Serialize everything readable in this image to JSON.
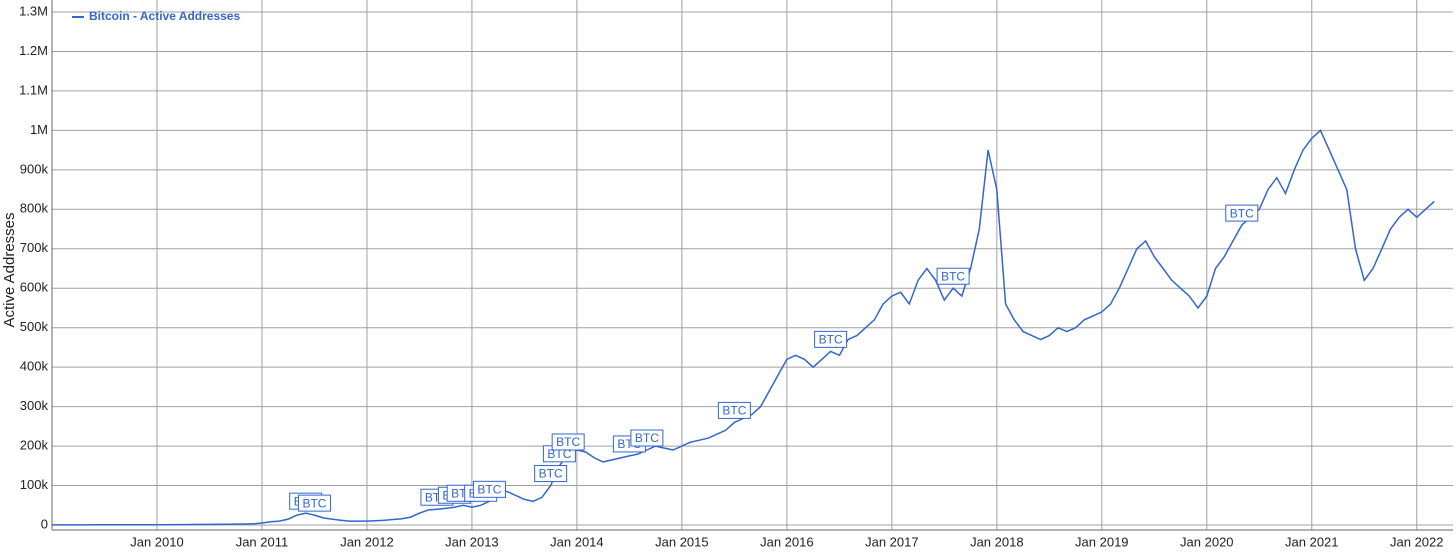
{
  "chart_data": {
    "type": "line",
    "y_label": "Active Addresses",
    "x": [
      "2009-01",
      "2009-02",
      "2009-03",
      "2009-04",
      "2009-05",
      "2009-06",
      "2009-07",
      "2009-08",
      "2009-09",
      "2009-10",
      "2009-11",
      "2009-12",
      "2010-01",
      "2010-02",
      "2010-03",
      "2010-04",
      "2010-05",
      "2010-06",
      "2010-07",
      "2010-08",
      "2010-09",
      "2010-10",
      "2010-11",
      "2010-12",
      "2011-01",
      "2011-02",
      "2011-03",
      "2011-04",
      "2011-05",
      "2011-06",
      "2011-07",
      "2011-08",
      "2011-09",
      "2011-10",
      "2011-11",
      "2011-12",
      "2012-01",
      "2012-02",
      "2012-03",
      "2012-04",
      "2012-05",
      "2012-06",
      "2012-07",
      "2012-08",
      "2012-09",
      "2012-10",
      "2012-11",
      "2012-12",
      "2013-01",
      "2013-02",
      "2013-03",
      "2013-04",
      "2013-05",
      "2013-06",
      "2013-07",
      "2013-08",
      "2013-09",
      "2013-10",
      "2013-11",
      "2013-12",
      "2014-01",
      "2014-02",
      "2014-03",
      "2014-04",
      "2014-05",
      "2014-06",
      "2014-07",
      "2014-08",
      "2014-09",
      "2014-10",
      "2014-11",
      "2014-12",
      "2015-01",
      "2015-02",
      "2015-03",
      "2015-04",
      "2015-05",
      "2015-06",
      "2015-07",
      "2015-08",
      "2015-09",
      "2015-10",
      "2015-11",
      "2015-12",
      "2016-01",
      "2016-02",
      "2016-03",
      "2016-04",
      "2016-05",
      "2016-06",
      "2016-07",
      "2016-08",
      "2016-09",
      "2016-10",
      "2016-11",
      "2016-12",
      "2017-01",
      "2017-02",
      "2017-03",
      "2017-04",
      "2017-05",
      "2017-06",
      "2017-07",
      "2017-08",
      "2017-09",
      "2017-10",
      "2017-11",
      "2017-12",
      "2018-01",
      "2018-02",
      "2018-03",
      "2018-04",
      "2018-05",
      "2018-06",
      "2018-07",
      "2018-08",
      "2018-09",
      "2018-10",
      "2018-11",
      "2018-12",
      "2019-01",
      "2019-02",
      "2019-03",
      "2019-04",
      "2019-05",
      "2019-06",
      "2019-07",
      "2019-08",
      "2019-09",
      "2019-10",
      "2019-11",
      "2019-12",
      "2020-01",
      "2020-02",
      "2020-03",
      "2020-04",
      "2020-05",
      "2020-06",
      "2020-07",
      "2020-08",
      "2020-09",
      "2020-10",
      "2020-11",
      "2020-12",
      "2021-01",
      "2021-02",
      "2021-03",
      "2021-04",
      "2021-05",
      "2021-06",
      "2021-07",
      "2021-08",
      "2021-09",
      "2021-10",
      "2021-11",
      "2021-12",
      "2022-01",
      "2022-02",
      "2022-03"
    ],
    "series": [
      {
        "name": "Bitcoin - Active Addresses",
        "color": "#3366cc",
        "values": [
          200,
          200,
          300,
          300,
          300,
          400,
          400,
          400,
          500,
          500,
          500,
          600,
          700,
          800,
          900,
          1000,
          1200,
          1400,
          1600,
          1800,
          2000,
          2300,
          2600,
          3000,
          5000,
          8000,
          10000,
          15000,
          25000,
          30000,
          25000,
          18000,
          15000,
          12000,
          10000,
          10000,
          10000,
          11000,
          12000,
          14000,
          16000,
          20000,
          30000,
          38000,
          40000,
          42000,
          45000,
          50000,
          45000,
          50000,
          60000,
          90000,
          85000,
          75000,
          65000,
          60000,
          70000,
          100000,
          150000,
          180000,
          190000,
          185000,
          170000,
          160000,
          165000,
          170000,
          175000,
          180000,
          190000,
          200000,
          195000,
          190000,
          200000,
          210000,
          215000,
          220000,
          230000,
          240000,
          260000,
          270000,
          280000,
          300000,
          340000,
          380000,
          420000,
          430000,
          420000,
          400000,
          420000,
          440000,
          430000,
          470000,
          480000,
          500000,
          520000,
          560000,
          580000,
          590000,
          560000,
          620000,
          650000,
          620000,
          570000,
          600000,
          580000,
          650000,
          750000,
          950000,
          850000,
          560000,
          520000,
          490000,
          480000,
          470000,
          480000,
          500000,
          490000,
          500000,
          520000,
          530000,
          540000,
          560000,
          600000,
          650000,
          700000,
          720000,
          680000,
          650000,
          620000,
          600000,
          580000,
          550000,
          580000,
          650000,
          680000,
          720000,
          760000,
          780000,
          800000,
          850000,
          880000,
          840000,
          900000,
          950000,
          980000,
          1000000,
          950000,
          900000,
          850000,
          700000,
          620000,
          650000,
          700000,
          750000,
          780000,
          800000,
          780000,
          800000,
          820000
        ]
      }
    ],
    "annotations": [
      {
        "x": "2011-06",
        "label": "BTC"
      },
      {
        "x": "2011-07",
        "label": "BTC"
      },
      {
        "x": "2012-09",
        "label": "BTC"
      },
      {
        "x": "2012-11",
        "label": "BTC"
      },
      {
        "x": "2012-12",
        "label": "BTC"
      },
      {
        "x": "2013-02",
        "label": "BTC"
      },
      {
        "x": "2013-03",
        "label": "BTC"
      },
      {
        "x": "2013-10",
        "label": "BTC"
      },
      {
        "x": "2013-11",
        "label": "BTC"
      },
      {
        "x": "2013-12",
        "label": "BTC"
      },
      {
        "x": "2014-07",
        "label": "BTC"
      },
      {
        "x": "2014-09",
        "label": "BTC"
      },
      {
        "x": "2015-07",
        "label": "BTC"
      },
      {
        "x": "2016-06",
        "label": "BTC"
      },
      {
        "x": "2017-08",
        "label": "BTC"
      },
      {
        "x": "2020-05",
        "label": "BTC"
      }
    ],
    "xlim": [
      "2009-01",
      "2022-04"
    ],
    "xticks": [
      {
        "value": "2010-01",
        "label": "Jan 2010"
      },
      {
        "value": "2011-01",
        "label": "Jan 2011"
      },
      {
        "value": "2012-01",
        "label": "Jan 2012"
      },
      {
        "value": "2013-01",
        "label": "Jan 2013"
      },
      {
        "value": "2014-01",
        "label": "Jan 2014"
      },
      {
        "value": "2015-01",
        "label": "Jan 2015"
      },
      {
        "value": "2016-01",
        "label": "Jan 2016"
      },
      {
        "value": "2017-01",
        "label": "Jan 2017"
      },
      {
        "value": "2018-01",
        "label": "Jan 2018"
      },
      {
        "value": "2019-01",
        "label": "Jan 2019"
      },
      {
        "value": "2020-01",
        "label": "Jan 2020"
      },
      {
        "value": "2021-01",
        "label": "Jan 2021"
      },
      {
        "value": "2022-01",
        "label": "Jan 2022"
      }
    ],
    "ylim": [
      0,
      1300000
    ],
    "yticks": [
      0,
      {
        "value": 100000,
        "label": "100k"
      },
      {
        "value": 200000,
        "label": "200k"
      },
      {
        "value": 300000,
        "label": "300k"
      },
      {
        "value": 400000,
        "label": "400k"
      },
      {
        "value": 500000,
        "label": "500k"
      },
      {
        "value": 600000,
        "label": "600k"
      },
      {
        "value": 700000,
        "label": "700k"
      },
      {
        "value": 800000,
        "label": "800k"
      },
      {
        "value": 900000,
        "label": "900k"
      },
      {
        "value": 1000000,
        "label": "1M"
      },
      {
        "value": 1100000,
        "label": "1.1M"
      },
      {
        "value": 1200000,
        "label": "1.2M"
      },
      {
        "value": 1300000,
        "label": "1.3M"
      }
    ],
    "grid": true,
    "legend": "top-left"
  }
}
